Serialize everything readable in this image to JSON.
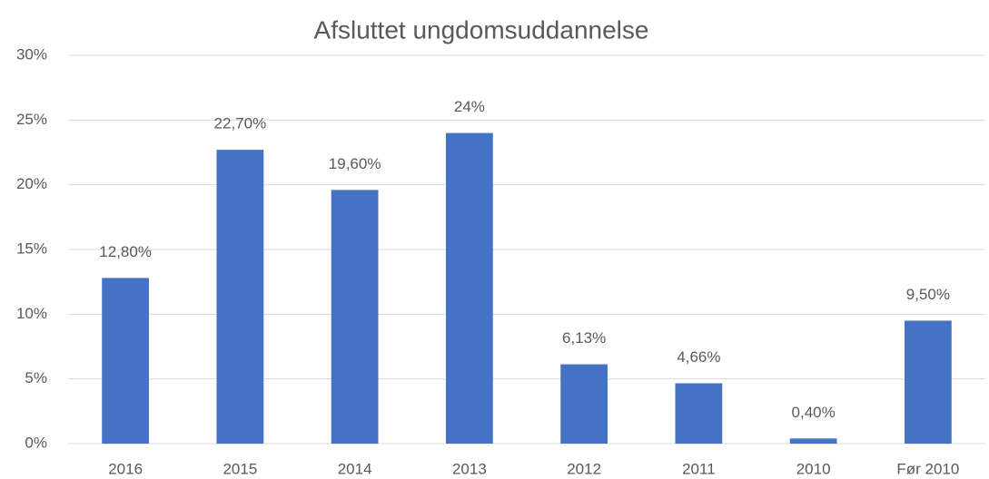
{
  "chart_data": {
    "type": "bar",
    "title": "Afsluttet ungdomsuddannelse",
    "categories": [
      "2016",
      "2015",
      "2014",
      "2013",
      "2012",
      "2011",
      "2010",
      "Før 2010"
    ],
    "values": [
      12.8,
      22.7,
      19.6,
      24,
      6.13,
      4.66,
      0.4,
      9.5
    ],
    "value_labels": [
      "12,80%",
      "22,70%",
      "19,60%",
      "24%",
      "6,13%",
      "4,66%",
      "0,40%",
      "9,50%"
    ],
    "color": "#4472c4",
    "ylim": [
      0,
      30
    ],
    "yticks": [
      {
        "value": 0,
        "label": "0%"
      },
      {
        "value": 5,
        "label": "5%"
      },
      {
        "value": 10,
        "label": "10%"
      },
      {
        "value": 15,
        "label": "15%"
      },
      {
        "value": 20,
        "label": "20%"
      },
      {
        "value": 25,
        "label": "25%"
      },
      {
        "value": 30,
        "label": "30%"
      }
    ],
    "grid": true
  }
}
